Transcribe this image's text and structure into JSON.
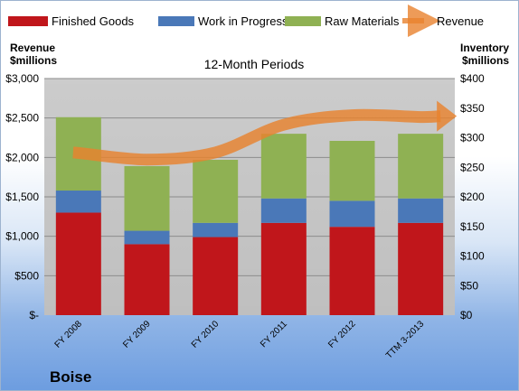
{
  "chart_data": {
    "type": "bar",
    "stacked": true,
    "title": "12-Month Periods",
    "company_label": "Boise",
    "categories": [
      "FY 2008",
      "FY 2009",
      "FY 2010",
      "FY 2011",
      "FY 2012",
      "TTM 3-2013"
    ],
    "series": [
      {
        "name": "Finished Goods",
        "axis": "left",
        "color": "#c0161b",
        "values": [
          1300,
          900,
          990,
          1170,
          1120,
          1170
        ]
      },
      {
        "name": "Work in Progress",
        "axis": "left",
        "color": "#4a78b8",
        "values": [
          280,
          170,
          180,
          310,
          330,
          310
        ]
      },
      {
        "name": "Raw Materials",
        "axis": "left",
        "color": "#8fb153",
        "values": [
          930,
          820,
          800,
          820,
          760,
          820
        ]
      },
      {
        "name": "Revenue",
        "axis": "right",
        "type": "line",
        "color": "#e8822e",
        "values": [
          275,
          263,
          275,
          322,
          338,
          335
        ]
      }
    ],
    "ylabel_left": "Revenue\n$millions",
    "ylabel_right": "Inventory\n$millions",
    "ylim_left": [
      0,
      3000
    ],
    "ylim_right": [
      0,
      400
    ],
    "yticks_left": [
      "$-",
      "$500",
      "$1,000",
      "$1,500",
      "$2,000",
      "$2,500",
      "$3,000"
    ],
    "yticks_right": [
      "$0",
      "$50",
      "$100",
      "$150",
      "$200",
      "$250",
      "$300",
      "$350",
      "$400"
    ],
    "grid": true,
    "legend_position": "top"
  }
}
